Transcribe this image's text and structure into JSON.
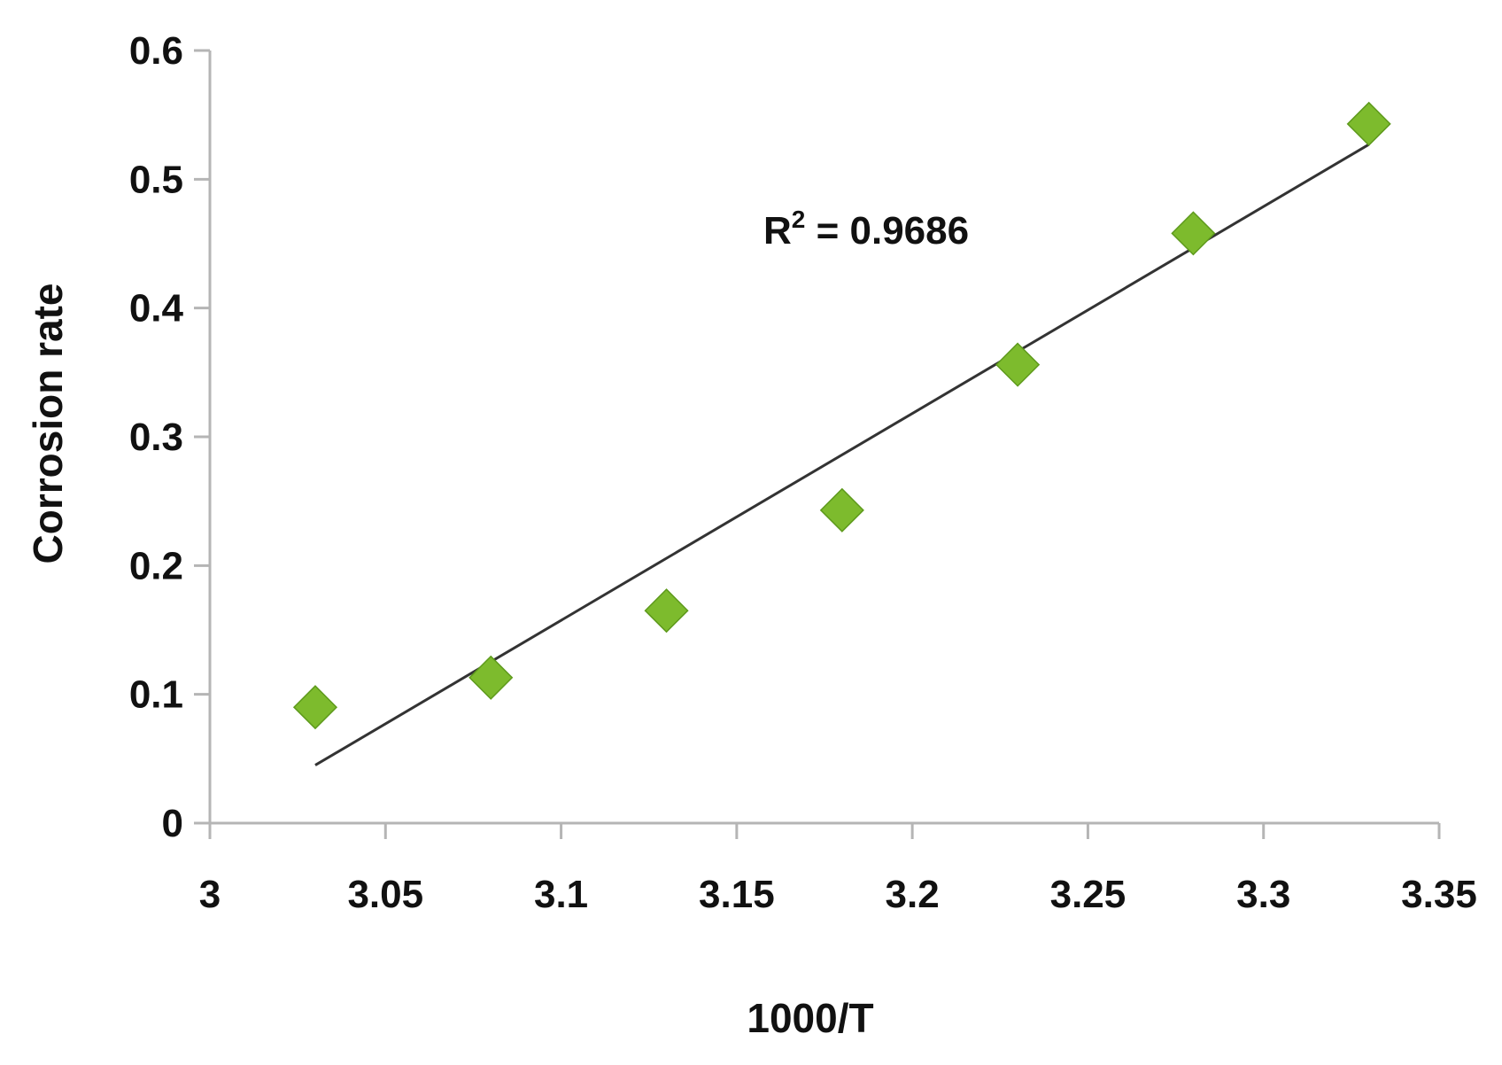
{
  "chart_data": {
    "type": "scatter",
    "xlabel": "1000/T",
    "ylabel": "Corrosion rate",
    "xlim": [
      3,
      3.35
    ],
    "ylim": [
      0,
      0.6
    ],
    "x_ticks": [
      "3",
      "3.05",
      "3.1",
      "3.15",
      "3.2",
      "3.25",
      "3.3",
      "3.35"
    ],
    "y_ticks": [
      "0",
      "0.1",
      "0.2",
      "0.3",
      "0.4",
      "0.5",
      "0.6"
    ],
    "grid": false,
    "series": [
      {
        "x": [
          3.03,
          3.08,
          3.13,
          3.18,
          3.23,
          3.28,
          3.33
        ],
        "y": [
          0.09,
          0.113,
          0.165,
          0.243,
          0.356,
          0.458,
          0.543
        ],
        "marker": "diamond",
        "color": "#7dbb2d"
      }
    ],
    "trendline": {
      "type": "linear",
      "x": [
        3.03,
        3.33
      ],
      "y": [
        0.045,
        0.527
      ],
      "color": "#333333"
    },
    "annotation": {
      "base": "R",
      "sup": "2",
      "rest": " = 0.9686"
    }
  }
}
